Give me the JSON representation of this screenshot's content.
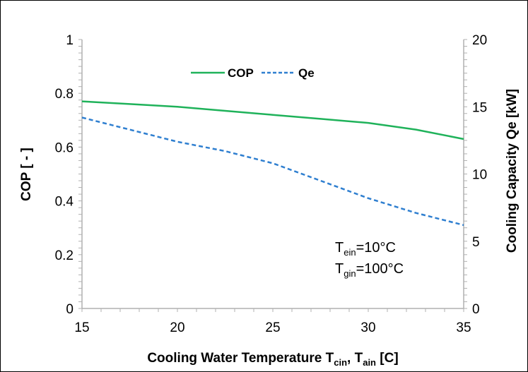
{
  "chart_data": {
    "type": "line",
    "xlabel": {
      "main": "Cooling Water Temperature T",
      "sub1": "cin",
      "sep": ", T",
      "sub2": "ain",
      "tail": " [C]"
    },
    "ylabel_left": "COP [ - ]",
    "ylabel_right": "Cooling Capacity  Qe [kW]",
    "xlim": [
      15,
      35
    ],
    "ylim_left": [
      0,
      1
    ],
    "ylim_right": [
      0,
      20
    ],
    "x_ticks": [
      "15",
      "20",
      "25",
      "30",
      "35"
    ],
    "y_left_ticks": [
      "0",
      "0.2",
      "0.4",
      "0.6",
      "0.8",
      "1"
    ],
    "y_right_ticks": [
      "0",
      "5",
      "10",
      "15",
      "20"
    ],
    "grid": false,
    "legend_position": "top-center",
    "series": [
      {
        "name": "COP",
        "axis": "left",
        "color": "#1fb25a",
        "style": "solid",
        "x": [
          15,
          17.5,
          20,
          22.5,
          25,
          27.5,
          30,
          32.5,
          35
        ],
        "y": [
          0.77,
          0.76,
          0.75,
          0.735,
          0.72,
          0.705,
          0.69,
          0.665,
          0.63
        ]
      },
      {
        "name": "Qe",
        "axis": "right",
        "color": "#2f7fd0",
        "style": "dashed",
        "x": [
          15,
          17.5,
          20,
          22.5,
          25,
          27.5,
          30,
          32.5,
          35
        ],
        "y": [
          14.2,
          13.3,
          12.4,
          11.7,
          10.8,
          9.5,
          8.2,
          7.1,
          6.2
        ]
      }
    ],
    "annotations": [
      {
        "main": "T",
        "sub": "ein",
        "tail": "=10°C"
      },
      {
        "main": "T",
        "sub": "gin",
        "tail": "=100°C"
      }
    ]
  }
}
